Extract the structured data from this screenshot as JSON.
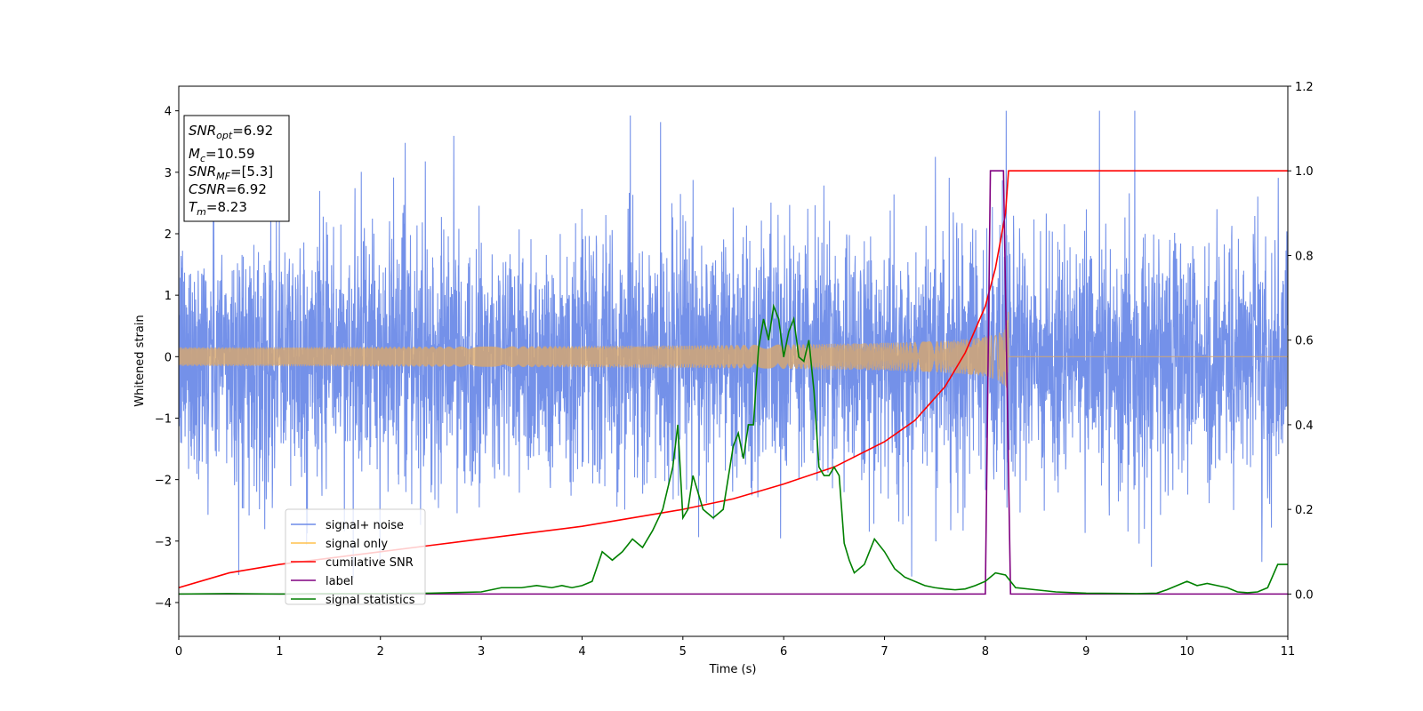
{
  "chart_data": {
    "type": "line",
    "xlabel": "Time (s)",
    "ylabel": "Whitened strain",
    "xlim": [
      0,
      11
    ],
    "ylim_left": [
      -4.55,
      4.4
    ],
    "ylim_right": [
      -0.1,
      1.2
    ],
    "x_ticks": [
      "0",
      "1",
      "2",
      "3",
      "4",
      "5",
      "6",
      "7",
      "8",
      "9",
      "10",
      "11"
    ],
    "y_ticks_left": [
      "−4",
      "−3",
      "−2",
      "−1",
      "0",
      "1",
      "2",
      "3",
      "4"
    ],
    "y_ticks_right": [
      "0.0",
      "0.2",
      "0.4",
      "0.6",
      "0.8",
      "1.0",
      "1.2"
    ],
    "annotation": {
      "snr_opt": {
        "sym": "SNR",
        "sub": "opt",
        "rest": "=6.92"
      },
      "mc": {
        "sym": "M",
        "sub": "c",
        "rest": "=10.59"
      },
      "snr_mf": {
        "sym": "SNR",
        "sub": "MF",
        "rest": "=[5.3]"
      },
      "csnr": {
        "sym": "CSNR",
        "sub": "",
        "rest": "=6.92"
      },
      "tm": {
        "sym": "T",
        "sub": "m",
        "rest": "=8.23"
      }
    },
    "legend": {
      "placement": "lower-left",
      "entries": [
        {
          "label": "signal+ noise",
          "color": "#6d8be8"
        },
        {
          "label": "signal only",
          "color": "#ffc04d"
        },
        {
          "label": "cumilative SNR",
          "color": "#ff0000"
        },
        {
          "label": "label",
          "color": "#800080"
        },
        {
          "label": "signal statistics",
          "color": "#008000"
        }
      ]
    },
    "series": [
      {
        "name": "signal+ noise",
        "axis": "left",
        "color": "#6d8be8",
        "description_values": {
          "t_start": 0,
          "t_end": 11,
          "std": 1.0,
          "peak_max": 4.0,
          "peak_min": -3.6
        }
      },
      {
        "name": "signal only",
        "axis": "left",
        "color": "#d9a86c",
        "chirp": {
          "t_start": 0,
          "t_merge": 8.23,
          "amp_start": 0.03,
          "amp_end": 0.8
        }
      },
      {
        "name": "cumilative SNR",
        "axis": "right",
        "color": "#ff0000",
        "x": [
          0,
          0.5,
          1,
          1.5,
          2,
          2.5,
          3,
          3.5,
          4,
          4.5,
          5,
          5.5,
          6,
          6.5,
          7,
          7.3,
          7.6,
          7.8,
          8.0,
          8.1,
          8.2,
          8.23,
          8.5,
          9,
          10,
          11
        ],
        "y": [
          0.015,
          0.05,
          0.07,
          0.085,
          0.1,
          0.115,
          0.13,
          0.145,
          0.16,
          0.18,
          0.2,
          0.225,
          0.26,
          0.3,
          0.36,
          0.41,
          0.49,
          0.57,
          0.68,
          0.77,
          0.9,
          1.0,
          1.0,
          1.0,
          1.0,
          1.0
        ]
      },
      {
        "name": "label",
        "axis": "right",
        "color": "#800080",
        "x": [
          0,
          8.0,
          8.05,
          8.18,
          8.25,
          11
        ],
        "y": [
          0,
          0,
          1,
          1,
          0,
          0
        ]
      },
      {
        "name": "signal statistics",
        "axis": "right",
        "color": "#008000",
        "x": [
          0,
          0.5,
          1,
          1.5,
          2,
          2.5,
          3,
          3.2,
          3.4,
          3.55,
          3.7,
          3.8,
          3.9,
          4.0,
          4.1,
          4.2,
          4.3,
          4.4,
          4.5,
          4.6,
          4.7,
          4.8,
          4.9,
          4.95,
          5.0,
          5.05,
          5.1,
          5.2,
          5.3,
          5.4,
          5.5,
          5.55,
          5.6,
          5.65,
          5.7,
          5.75,
          5.8,
          5.85,
          5.9,
          5.95,
          6.0,
          6.05,
          6.1,
          6.15,
          6.2,
          6.25,
          6.3,
          6.35,
          6.4,
          6.45,
          6.5,
          6.55,
          6.6,
          6.65,
          6.7,
          6.8,
          6.9,
          7.0,
          7.1,
          7.2,
          7.3,
          7.4,
          7.5,
          7.6,
          7.7,
          7.8,
          7.9,
          8.0,
          8.1,
          8.2,
          8.3,
          8.5,
          8.7,
          9.0,
          9.5,
          9.7,
          9.8,
          9.9,
          10.0,
          10.1,
          10.2,
          10.3,
          10.4,
          10.5,
          10.6,
          10.7,
          10.8,
          10.9,
          11.0
        ],
        "y": [
          0,
          0.001,
          0.0,
          0.001,
          0.001,
          0.002,
          0.005,
          0.015,
          0.015,
          0.02,
          0.015,
          0.02,
          0.015,
          0.02,
          0.03,
          0.1,
          0.08,
          0.1,
          0.13,
          0.11,
          0.15,
          0.2,
          0.3,
          0.4,
          0.18,
          0.2,
          0.28,
          0.2,
          0.18,
          0.2,
          0.35,
          0.38,
          0.32,
          0.4,
          0.4,
          0.58,
          0.65,
          0.6,
          0.68,
          0.65,
          0.56,
          0.62,
          0.65,
          0.56,
          0.55,
          0.6,
          0.48,
          0.3,
          0.28,
          0.28,
          0.3,
          0.28,
          0.12,
          0.08,
          0.05,
          0.07,
          0.13,
          0.1,
          0.06,
          0.04,
          0.03,
          0.02,
          0.015,
          0.012,
          0.01,
          0.012,
          0.02,
          0.03,
          0.05,
          0.045,
          0.015,
          0.01,
          0.005,
          0.002,
          0.001,
          0.002,
          0.01,
          0.02,
          0.03,
          0.02,
          0.025,
          0.02,
          0.015,
          0.005,
          0.003,
          0.005,
          0.015,
          0.07,
          0.07
        ]
      }
    ]
  }
}
